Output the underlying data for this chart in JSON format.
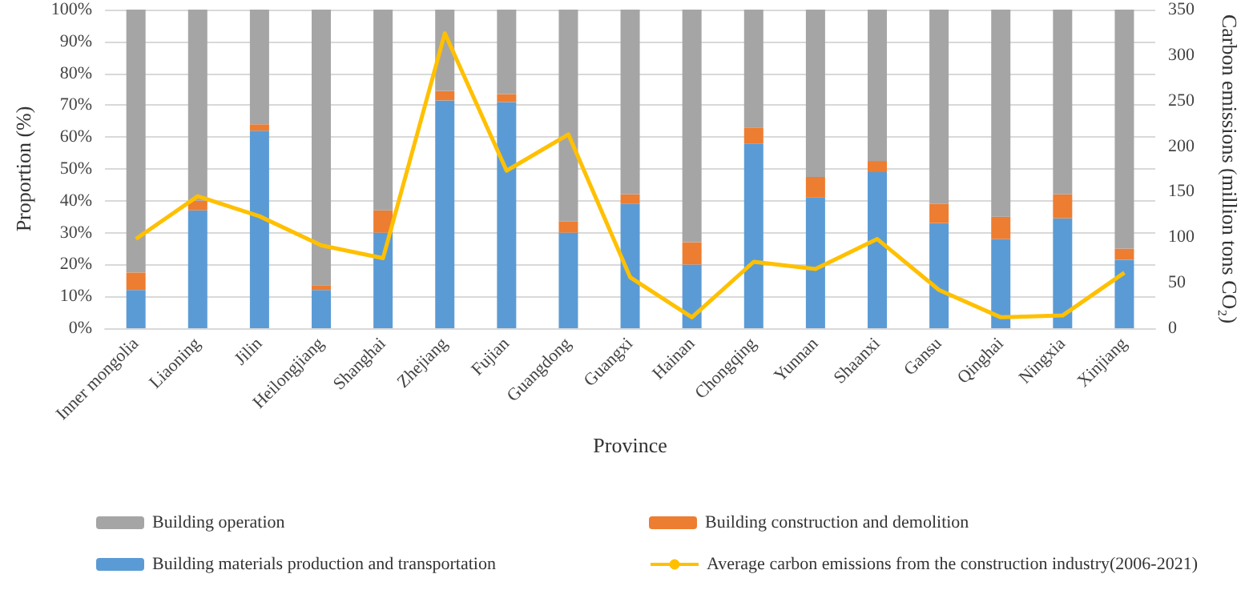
{
  "chart_data": {
    "type": "bar",
    "stacked": true,
    "xlabel": "Province",
    "ylabel": "Proportion (%)",
    "y2label": "Carbon emissions (million tons CO₂)",
    "categories": [
      "Inner mongolia",
      "Liaoning",
      "Jilin",
      "Heilongjiang",
      "Shanghai",
      "Zhejiang",
      "Fujian",
      "Guangdong",
      "Guangxi",
      "Hainan",
      "Chongqing",
      "Yunnan",
      "Shaanxi",
      "Gansu",
      "Qinghai",
      "Ningxia",
      "Xinjiang"
    ],
    "series": [
      {
        "name": "Building materials production and transportation",
        "color": "#5b9bd5",
        "values": [
          12,
          37,
          62,
          12,
          30,
          71.5,
          71,
          30,
          39,
          20,
          58,
          41,
          49,
          33,
          28,
          34.5,
          21.5
        ]
      },
      {
        "name": "Building construction and demolition",
        "color": "#ed7d31",
        "values": [
          5.5,
          3,
          2,
          1.5,
          7,
          3,
          2.5,
          3.5,
          3,
          7,
          5,
          6.5,
          3.5,
          6,
          7,
          7.5,
          3.5
        ]
      },
      {
        "name": "Building operation",
        "color": "#a5a5a5",
        "values": [
          82.5,
          60,
          36,
          86.5,
          63,
          25.5,
          26.5,
          66.5,
          58,
          73,
          37,
          52.5,
          47.5,
          61,
          65,
          58,
          75
        ]
      },
      {
        "name": "Average carbon emissions from the construction industry(2006-2021)",
        "type": "line",
        "axis": "y2",
        "color": "#ffc000",
        "values": [
          98,
          145,
          123,
          91,
          77,
          324,
          173,
          213,
          56,
          12,
          73,
          65,
          98,
          42,
          12,
          14,
          61
        ]
      }
    ],
    "ylim": [
      0,
      100
    ],
    "yticks": [
      {
        "value": 0,
        "label": "0%"
      },
      {
        "value": 10,
        "label": "10%"
      },
      {
        "value": 20,
        "label": "20%"
      },
      {
        "value": 30,
        "label": "30%"
      },
      {
        "value": 40,
        "label": "40%"
      },
      {
        "value": 50,
        "label": "50%"
      },
      {
        "value": 60,
        "label": "60%"
      },
      {
        "value": 70,
        "label": "70%"
      },
      {
        "value": 80,
        "label": "80%"
      },
      {
        "value": 90,
        "label": "90%"
      },
      {
        "value": 100,
        "label": "100%"
      }
    ],
    "y2lim": [
      0,
      350
    ],
    "y2ticks": [
      0,
      50,
      100,
      150,
      200,
      250,
      300,
      350
    ],
    "grid": "y",
    "legend": "bottom",
    "marker": "none"
  }
}
